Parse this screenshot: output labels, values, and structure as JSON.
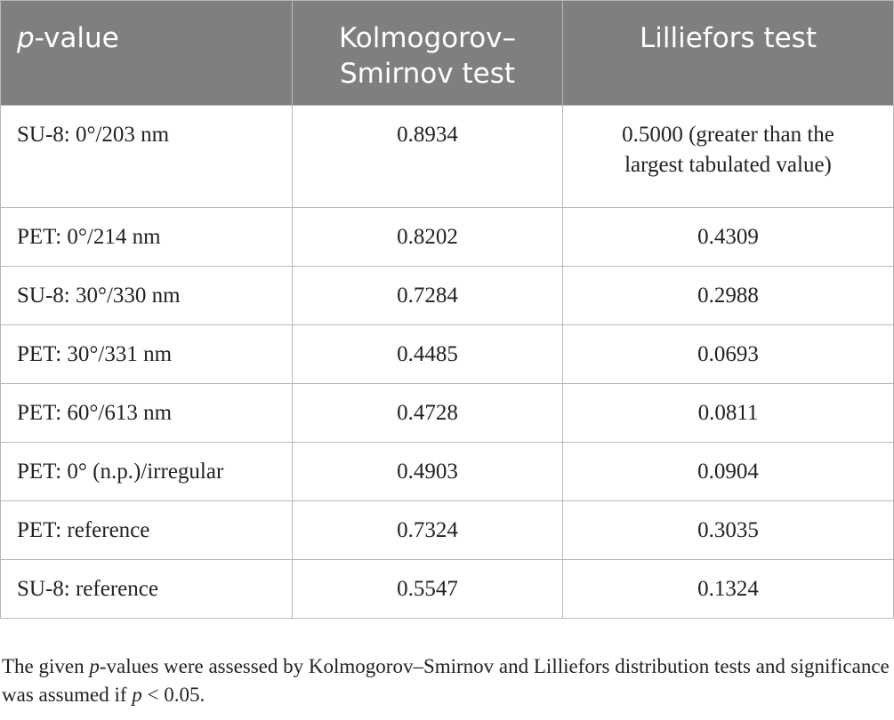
{
  "table": {
    "headers": {
      "col1_italic": "p",
      "col1_rest": "-value",
      "col2_line1": "Kolmogorov–",
      "col2_line2": "Smirnov test",
      "col3": "Lilliefors test"
    },
    "rows": [
      {
        "sample": "SU-8: 0°/203 nm",
        "ks": "0.8934",
        "lilliefors_line1": "0.5000 (greater than the",
        "lilliefors_line2": "largest tabulated value)"
      },
      {
        "sample": "PET: 0°/214 nm",
        "ks": "0.8202",
        "lilliefors": "0.4309"
      },
      {
        "sample": "SU-8: 30°/330 nm",
        "ks": "0.7284",
        "lilliefors": "0.2988"
      },
      {
        "sample": "PET: 30°/331 nm",
        "ks": "0.4485",
        "lilliefors": "0.0693"
      },
      {
        "sample": "PET: 60°/613 nm",
        "ks": "0.4728",
        "lilliefors": "0.0811"
      },
      {
        "sample": "PET: 0° (n.p.)/irregular",
        "ks": "0.4903",
        "lilliefors": "0.0904"
      },
      {
        "sample": "PET: reference",
        "ks": "0.7324",
        "lilliefors": "0.3035"
      },
      {
        "sample": "SU-8: reference",
        "ks": "0.5547",
        "lilliefors": "0.1324"
      }
    ]
  },
  "footnote": {
    "part1": "The given ",
    "p1": "p",
    "part2": "-values were assessed by Kolmogorov–Smirnov and Lilliefors distribution tests and significance was assumed if ",
    "p2": "p",
    "part3": " < 0.05."
  },
  "colors": {
    "header_bg": "#7f807e",
    "header_text": "#ffffff",
    "border": "#b7b7b7",
    "text": "#222222"
  }
}
